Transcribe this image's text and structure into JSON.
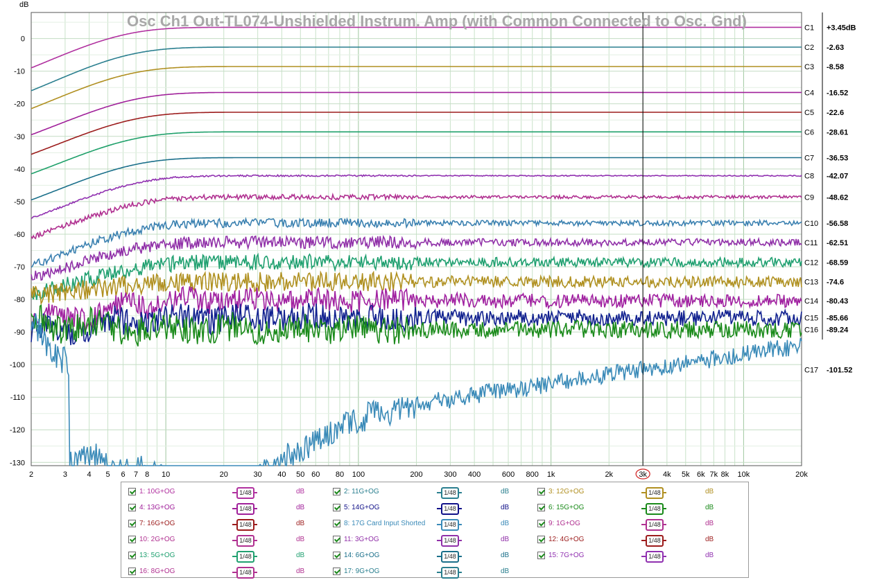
{
  "chart_data": {
    "type": "line",
    "title": "Osc Ch1 Out-TL074-Unshielded Instrum. Amp (with Common Connected to Osc. Gnd)",
    "ylabel": "dB",
    "xlabel": "",
    "x_scale": "log",
    "xlim": [
      2,
      20000
    ],
    "ylim": [
      -131,
      8
    ],
    "grid": true,
    "y_ticks": [
      0,
      -10,
      -20,
      -30,
      -40,
      -50,
      -60,
      -70,
      -80,
      -90,
      -100,
      -110,
      -120,
      -130
    ],
    "y_tick_labels": [
      "0",
      "-10",
      "-20",
      "-30",
      "-40",
      "-50",
      "-60",
      "-70",
      "-80",
      "-90",
      "-100",
      "-110",
      "-120",
      "-130"
    ],
    "x_ticks": [
      2,
      3,
      4,
      5,
      6,
      7,
      8,
      10,
      20,
      30,
      40,
      50,
      60,
      80,
      100,
      200,
      300,
      400,
      600,
      800,
      1000,
      2000,
      3000,
      4000,
      5000,
      6000,
      7000,
      8000,
      10000,
      20000
    ],
    "x_tick_labels": [
      "2",
      "3",
      "4",
      "5",
      "6",
      "7",
      "8",
      "10",
      "20",
      "30",
      "40",
      "50",
      "60",
      "80",
      "100",
      "200",
      "300",
      "400",
      "600",
      "800",
      "1k",
      "2k",
      "3k",
      "4k",
      "5k",
      "6k",
      "7k",
      "8k",
      "10k",
      "20k"
    ],
    "cursor_x": 3000,
    "cursor_label": "3k",
    "series": [
      {
        "name": "1: 10G+OG",
        "color": "#b0309f",
        "cursor_label": "C1",
        "cursor_value": "+3.45dB",
        "level": 3.45,
        "start": -9,
        "tau": 1.5
      },
      {
        "name": "2: 11G+OG",
        "color": "#2a7f8f",
        "cursor_label": "C2",
        "cursor_value": "-2.63",
        "level": -2.63,
        "start": -16,
        "tau": 1.6
      },
      {
        "name": "3: 12G+OG",
        "color": "#b08f20",
        "cursor_label": "C3",
        "cursor_value": "-8.58",
        "level": -8.58,
        "start": -21.5,
        "tau": 1.6
      },
      {
        "name": "4: 13G+OG",
        "color": "#a0209a",
        "cursor_label": "C4",
        "cursor_value": "-16.52",
        "level": -16.52,
        "start": -29.5,
        "tau": 1.7
      },
      {
        "name": "5: 14G+OG",
        "color": "#9c1c1c",
        "cursor_label": "C5",
        "cursor_value": "-22.6",
        "level": -22.6,
        "start": -35.5,
        "tau": 1.7
      },
      {
        "name": "6: 15G+OG",
        "color": "#1ea06a",
        "cursor_label": "C6",
        "cursor_value": "-28.61",
        "level": -28.61,
        "start": -41.5,
        "tau": 1.7
      },
      {
        "name": "7: 16G+OG",
        "color": "#1a6f8a",
        "cursor_label": "C7",
        "cursor_value": "-36.53",
        "level": -36.53,
        "start": -49.5,
        "tau": 1.7
      },
      {
        "name": "8: 17G Card  Input Shorted",
        "color": "#9030b0",
        "cursor_label": "C8",
        "cursor_value": "-42.07",
        "level": -42.07,
        "start": -55,
        "tau": 1.8
      },
      {
        "name": "9: 1G+OG",
        "color": "#b03090",
        "cursor_label": "C9",
        "cursor_value": "-48.62",
        "level": -48.62,
        "start": -61,
        "tau": 1.8
      },
      {
        "name": "10: 2G+OG",
        "color": "#3a80b0",
        "cursor_label": "C10",
        "cursor_value": "-56.58",
        "level": -56.58,
        "start": -69.5,
        "tau": 1.8
      },
      {
        "name": "11: 3G+OG",
        "color": "#9030a8",
        "cursor_label": "C11",
        "cursor_value": "-62.51",
        "level": -62.51,
        "start": -73.5,
        "tau": 1.8
      },
      {
        "name": "12: 4G+OG",
        "color": "#20a070",
        "cursor_label": "C12",
        "cursor_value": "-68.59",
        "level": -68.59,
        "start": -78.5,
        "tau": 1.9
      },
      {
        "name": "13: 5G+OG",
        "color": "#b09020",
        "cursor_label": "C13",
        "cursor_value": "-74.6",
        "level": -74.6,
        "start": -79,
        "tau": 1.9
      },
      {
        "name": "14: 6G+OG",
        "color": "#a020a0",
        "cursor_label": "C14",
        "cursor_value": "-80.43",
        "level": -80.43,
        "start": -87.5,
        "tau": 2.0
      },
      {
        "name": "15: 7G+OG",
        "color": "#10208f",
        "cursor_label": "C15",
        "cursor_value": "-85.66",
        "level": -85.66,
        "start": -90.5,
        "tau": 2.0
      },
      {
        "name": "16: 8G+OG",
        "color": "#1a8a1a",
        "cursor_label": "C16",
        "cursor_value": "-89.24",
        "level": -89.24,
        "start": -87.5,
        "tau": 2.0
      },
      {
        "name": "17: 9G+OG",
        "color": "#3a8ab8",
        "cursor_label": "C17",
        "cursor_value": "-101.52",
        "level": -101.52,
        "start": -87.5,
        "tau": 2.0
      }
    ],
    "legend": {
      "smoothing_label": "1/48",
      "unit_label": "dB",
      "items": [
        {
          "name": "1: 10G+OG",
          "color": "#b0309f"
        },
        {
          "name": "2: 11G+OG",
          "color": "#2a7f8f"
        },
        {
          "name": "3: 12G+OG",
          "color": "#b08f20"
        },
        {
          "name": "4: 13G+OG",
          "color": "#a0209a"
        },
        {
          "name": "5: 14G+OG",
          "color": "#101088"
        },
        {
          "name": "6: 15G+OG",
          "color": "#1a8a1a"
        },
        {
          "name": "7: 16G+OG",
          "color": "#9c1c1c"
        },
        {
          "name": "8: 17G Card  Input Shorted",
          "color": "#3a8ab8"
        },
        {
          "name": "9: 1G+OG",
          "color": "#b03090"
        },
        {
          "name": "10: 2G+OG",
          "color": "#b03090"
        },
        {
          "name": "11: 3G+OG",
          "color": "#9030a8"
        },
        {
          "name": "12: 4G+OG",
          "color": "#9c1c1c"
        },
        {
          "name": "13: 5G+OG",
          "color": "#20a070"
        },
        {
          "name": "14: 6G+OG",
          "color": "#1a6f8a"
        },
        {
          "name": "15: 7G+OG",
          "color": "#9030b0"
        },
        {
          "name": "16: 8G+OG",
          "color": "#b03090"
        },
        {
          "name": "17: 9G+OG",
          "color": "#2a7f8f"
        }
      ]
    }
  }
}
